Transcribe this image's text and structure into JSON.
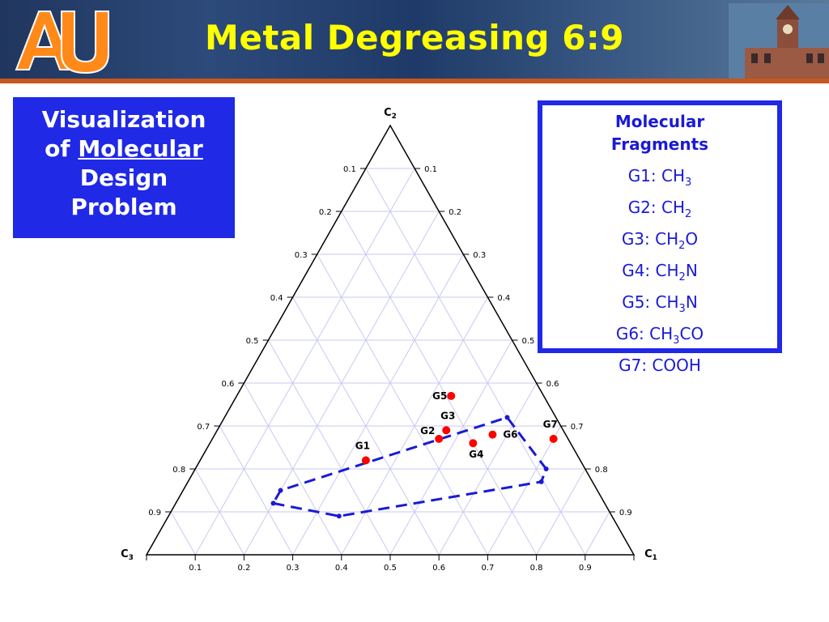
{
  "slide": {
    "title": "Metal Degreasing  6:9"
  },
  "left_box": {
    "line1": "Visualization",
    "line2_prefix": "of ",
    "line2_underlined": "Molecular",
    "line3": "Design",
    "line4": "Problem"
  },
  "fragments_box": {
    "heading_line1": "Molecular",
    "heading_line2": "Fragments",
    "items": [
      {
        "label": "G1: CH",
        "sub": "3",
        "suffix": ""
      },
      {
        "label": "G2: CH",
        "sub": "2",
        "suffix": ""
      },
      {
        "label": "G3: CH",
        "sub": "2",
        "suffix": "O"
      },
      {
        "label": "G4: CH",
        "sub": "2",
        "suffix": "N"
      },
      {
        "label": "G5: CH",
        "sub": "3",
        "suffix": "N"
      },
      {
        "label": "G6: CH",
        "sub": "3",
        "suffix": "CO"
      },
      {
        "label": "G7: COOH",
        "sub": "",
        "suffix": ""
      }
    ]
  },
  "ternary": {
    "vertices": {
      "top": {
        "main": "C",
        "sub": "2"
      },
      "left": {
        "main": "C",
        "sub": "3"
      },
      "right": {
        "main": "C",
        "sub": "1"
      }
    },
    "left_ticks": [
      "0.1",
      "0.2",
      "0.3",
      "0.4",
      "0.5",
      "0.6",
      "0.7",
      "0.8",
      "0.9"
    ],
    "right_ticks": [
      "0.9",
      "0.8",
      "0.7",
      "0.6",
      "0.5",
      "0.4",
      "0.3",
      "0.2",
      "0.1"
    ],
    "bottom_ticks": [
      "0.1",
      "0.2",
      "0.3",
      "0.4",
      "0.5",
      "0.6",
      "0.7",
      "0.8",
      "0.9"
    ],
    "points": [
      {
        "name": "G1",
        "c1": 0.34,
        "c2": 0.22
      },
      {
        "name": "G2",
        "c1": 0.465,
        "c2": 0.27
      },
      {
        "name": "G3",
        "c1": 0.47,
        "c2": 0.29
      },
      {
        "name": "G4",
        "c1": 0.54,
        "c2": 0.26
      },
      {
        "name": "G5",
        "c1": 0.44,
        "c2": 0.37
      },
      {
        "name": "G6",
        "c1": 0.57,
        "c2": 0.28
      },
      {
        "name": "G7",
        "c1": 0.7,
        "c2": 0.27
      }
    ],
    "region": [
      {
        "c1": 0.2,
        "c2": 0.12
      },
      {
        "c1": 0.35,
        "c2": 0.09
      },
      {
        "c1": 0.725,
        "c2": 0.17
      },
      {
        "c1": 0.72,
        "c2": 0.2
      },
      {
        "c1": 0.58,
        "c2": 0.32
      },
      {
        "c1": 0.2,
        "c2": 0.15
      }
    ],
    "colors": {
      "grid": "#c9c9f2",
      "point": "#ff0000",
      "region": "#1a1ad6",
      "axis": "#000000"
    }
  }
}
